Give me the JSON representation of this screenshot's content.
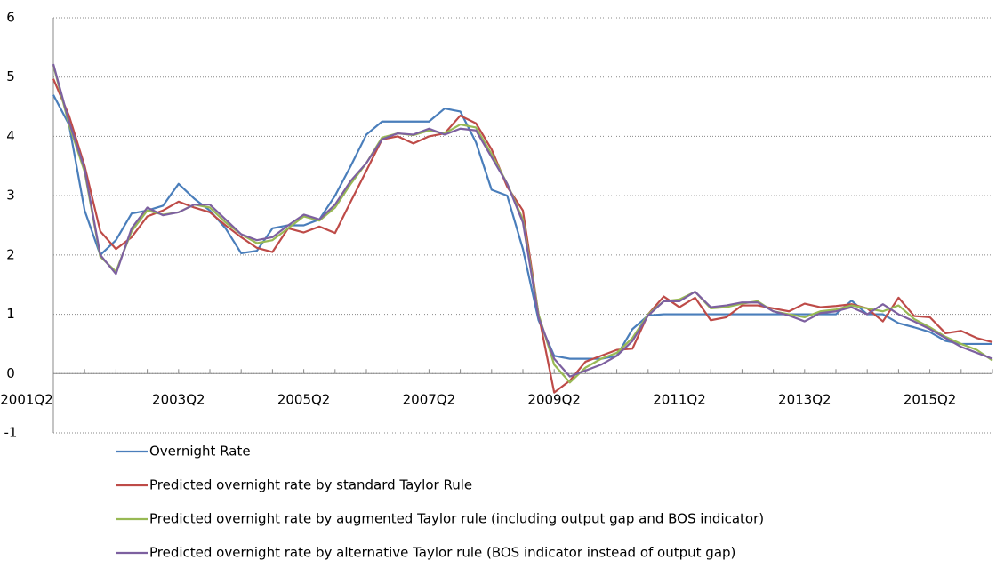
{
  "chart_data": {
    "type": "line",
    "categories": [
      "2001Q2",
      null,
      null,
      null,
      null,
      null,
      null,
      null,
      "2003Q2",
      null,
      null,
      null,
      null,
      null,
      null,
      null,
      "2005Q2",
      null,
      null,
      null,
      null,
      null,
      null,
      null,
      "2007Q2",
      null,
      null,
      null,
      null,
      null,
      null,
      null,
      "2009Q2",
      null,
      null,
      null,
      null,
      null,
      null,
      null,
      "2011Q2",
      null,
      null,
      null,
      null,
      null,
      null,
      null,
      "2013Q2",
      null,
      null,
      null,
      null,
      null,
      null,
      null,
      "2015Q2",
      null,
      null,
      null,
      null
    ],
    "ylim": [
      -1,
      6
    ],
    "yticks": [
      -1,
      0,
      1,
      2,
      3,
      4,
      5,
      6
    ],
    "grid": true,
    "series": [
      {
        "name": "Overnight Rate",
        "color": "#4a7ebb",
        "values": [
          4.7,
          4.2,
          2.75,
          2.0,
          2.25,
          2.7,
          2.75,
          2.83,
          3.2,
          2.95,
          2.75,
          2.45,
          2.03,
          2.07,
          2.45,
          2.5,
          2.5,
          2.6,
          3.0,
          3.5,
          4.03,
          4.25,
          4.25,
          4.25,
          4.25,
          4.47,
          4.42,
          3.9,
          3.1,
          3.0,
          2.1,
          0.9,
          0.3,
          0.25,
          0.25,
          0.25,
          0.3,
          0.75,
          0.98,
          1.0,
          1,
          1,
          1,
          1,
          1,
          1,
          1,
          1,
          1,
          1,
          1.0,
          1.23,
          1.0,
          1.0,
          0.85,
          0.78,
          0.7,
          0.55,
          0.5,
          0.5,
          0.5
        ]
      },
      {
        "name": "Predicted overnight rate by standard Taylor Rule",
        "color": "#be4b48",
        "values": [
          4.97,
          4.35,
          3.5,
          2.4,
          2.1,
          2.3,
          2.65,
          2.75,
          2.9,
          2.8,
          2.72,
          2.5,
          2.3,
          2.12,
          2.05,
          2.45,
          2.38,
          2.48,
          2.37,
          2.9,
          3.42,
          3.95,
          4.0,
          3.88,
          4.0,
          4.05,
          4.35,
          4.22,
          3.78,
          3.15,
          2.75,
          1.0,
          -0.32,
          -0.12,
          0.2,
          0.3,
          0.4,
          0.42,
          1.0,
          1.3,
          1.12,
          1.28,
          0.9,
          0.95,
          1.15,
          1.15,
          1.1,
          1.05,
          1.18,
          1.12,
          1.14,
          1.17,
          1.1,
          0.88,
          1.28,
          0.97,
          0.95,
          0.68,
          0.72,
          0.6,
          0.53
        ]
      },
      {
        "name": "Predicted overnight rate by augmented Taylor rule (including output gap and BOS indicator)",
        "color": "#98b954",
        "values": [
          5.2,
          4.2,
          3.4,
          1.97,
          1.72,
          2.4,
          2.75,
          2.68,
          2.72,
          2.85,
          2.8,
          2.55,
          2.35,
          2.2,
          2.25,
          2.45,
          2.65,
          2.58,
          2.8,
          3.2,
          3.55,
          3.98,
          4.05,
          4.02,
          4.1,
          4.05,
          4.2,
          4.15,
          3.7,
          3.2,
          2.6,
          1.0,
          0.15,
          -0.15,
          0.1,
          0.25,
          0.35,
          0.6,
          1.0,
          1.22,
          1.25,
          1.38,
          1.1,
          1.12,
          1.18,
          1.22,
          1.05,
          1.0,
          0.95,
          1.05,
          1.08,
          1.15,
          1.1,
          1.05,
          1.15,
          0.92,
          0.78,
          0.62,
          0.5,
          0.4,
          0.22
        ]
      },
      {
        "name": "Predicted overnight rate by alternative Taylor rule (BOS indicator instead of output gap)",
        "color": "#7d60a0",
        "values": [
          5.22,
          4.25,
          3.45,
          2.0,
          1.68,
          2.45,
          2.8,
          2.67,
          2.72,
          2.85,
          2.85,
          2.6,
          2.35,
          2.25,
          2.3,
          2.5,
          2.68,
          2.6,
          2.85,
          3.25,
          3.55,
          3.95,
          4.05,
          4.03,
          4.13,
          4.03,
          4.13,
          4.1,
          3.65,
          3.2,
          2.55,
          0.95,
          0.25,
          -0.05,
          0.05,
          0.15,
          0.3,
          0.55,
          0.98,
          1.22,
          1.22,
          1.38,
          1.12,
          1.15,
          1.2,
          1.2,
          1.05,
          0.98,
          0.88,
          1.02,
          1.05,
          1.12,
          1.0,
          1.17,
          1.0,
          0.88,
          0.75,
          0.6,
          0.45,
          0.35,
          0.25
        ]
      }
    ]
  }
}
